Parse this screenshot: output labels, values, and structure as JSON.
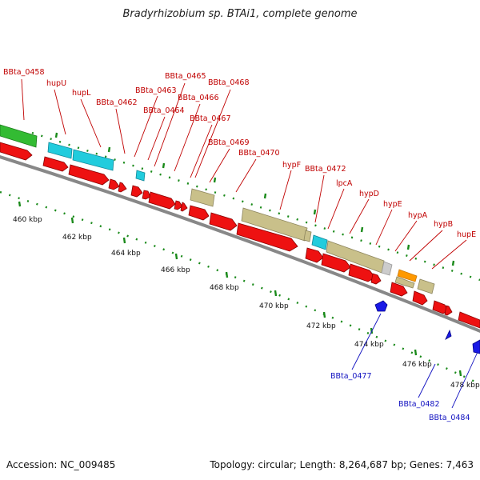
{
  "title": "Bradyrhizobium sp. BTAi1, complete genome",
  "accession": "Accession: NC_009485",
  "summary": "Topology: circular; Length: 8,264,687 bp; Genes: 7,463",
  "colors": {
    "forward_cds": "#ee1111",
    "reverse_cds": "#1a1ae6",
    "backbone": "#888888",
    "green_track": "#33bb33",
    "cyan_track": "#22ccdd",
    "khaki_track": "#c9c08a",
    "orange_track": "#ff9900",
    "grey_track": "#cccccc",
    "tick_green": "#1a8a1a"
  },
  "kbp_ticks": [
    {
      "kbp": 460,
      "label": "460 kbp"
    },
    {
      "kbp": 462,
      "label": "462 kbp"
    },
    {
      "kbp": 464,
      "label": "464 kbp"
    },
    {
      "kbp": 466,
      "label": "466 kbp"
    },
    {
      "kbp": 468,
      "label": "468 kbp"
    },
    {
      "kbp": 470,
      "label": "470 kbp"
    },
    {
      "kbp": 472,
      "label": "472 kbp"
    },
    {
      "kbp": 474,
      "label": "474 kbp"
    },
    {
      "kbp": 476,
      "label": "476 kbp"
    },
    {
      "kbp": 478,
      "label": "478 kbp"
    }
  ],
  "top_labels": [
    "BBta_0458",
    "hupU",
    "hupL",
    "BBta_0462",
    "BBta_0463",
    "BBta_0464",
    "BBta_0465",
    "BBta_0466",
    "BBta_0467",
    "BBta_0468",
    "BBta_0469",
    "BBta_0470",
    "hypF",
    "BBta_0472",
    "lpcA",
    "hypD",
    "hypE",
    "hypA",
    "hypB",
    "hupE"
  ],
  "bottom_labels": [
    "BBta_0477",
    "BBta_0482",
    "BBta_0484"
  ]
}
